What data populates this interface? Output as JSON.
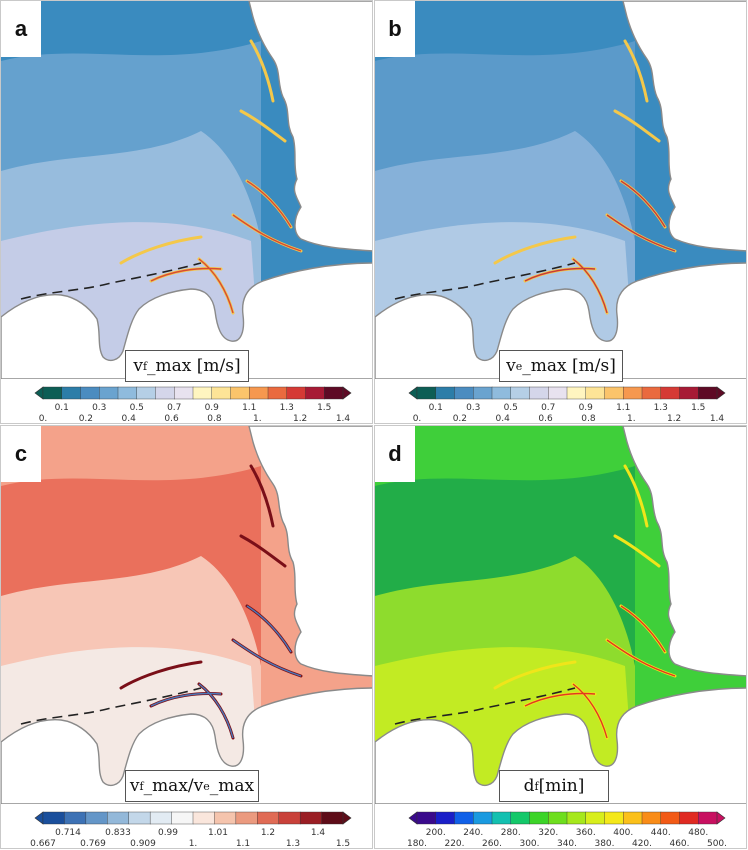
{
  "panels": [
    {
      "label": "a",
      "variable": {
        "main": "v",
        "sub": "f",
        "rest": "_max [m/s]"
      },
      "colorbar": {
        "colors": [
          "#0d5e55",
          "#2c7da8",
          "#4b8cc0",
          "#6aa3cf",
          "#8fbbdd",
          "#b5cfe6",
          "#d4d6ea",
          "#e8e2ef",
          "#fff5c0",
          "#fde497",
          "#fbc46b",
          "#f6984f",
          "#ea6a3e",
          "#d53a35",
          "#a71a35",
          "#5e0a25"
        ],
        "labels_top": [
          "0.1",
          "0.3",
          "0.5",
          "0.7",
          "0.9",
          "1.1",
          "1.3",
          "1.5"
        ],
        "labels_bottom": [
          "0.",
          "0.2",
          "0.4",
          "0.6",
          "0.8",
          "1.",
          "1.2",
          "1.4"
        ]
      },
      "palette": {
        "sea": "#3a8bbf",
        "mid": "#6aa3cf",
        "light": "#9cbfdf",
        "pale": "#c9cde8",
        "streak": "#f4c84a",
        "streak2": "#d74a35"
      }
    },
    {
      "label": "b",
      "variable": {
        "main": "v",
        "sub": "e",
        "rest": "_max [m/s]"
      },
      "colorbar": {
        "colors": [
          "#0d5e55",
          "#2c7da8",
          "#4b8cc0",
          "#6aa3cf",
          "#8fbbdd",
          "#b5cfe6",
          "#d4d6ea",
          "#e8e2ef",
          "#fff5c0",
          "#fde497",
          "#fbc46b",
          "#f6984f",
          "#ea6a3e",
          "#d53a35",
          "#a71a35",
          "#5e0a25"
        ],
        "labels_top": [
          "0.1",
          "0.3",
          "0.5",
          "0.7",
          "0.9",
          "1.1",
          "1.3",
          "1.5"
        ],
        "labels_bottom": [
          "0.",
          "0.2",
          "0.4",
          "0.6",
          "0.8",
          "1.",
          "1.2",
          "1.4"
        ]
      },
      "palette": {
        "sea": "#3a8bbf",
        "mid": "#5f9bcb",
        "light": "#8bb4da",
        "pale": "#b5cde6",
        "streak": "#f4c84a",
        "streak2": "#c73a3a"
      }
    },
    {
      "label": "c",
      "variable": {
        "main": "v",
        "sub": "f",
        "rest": "_max/v",
        "sub2": "e",
        "rest2": "_max"
      },
      "colorbar": {
        "colors": [
          "#1a4f9c",
          "#3d72b5",
          "#6496c8",
          "#93b8d9",
          "#c3d7e9",
          "#e2ebf3",
          "#f6f6f6",
          "#fae6dc",
          "#f5c4ad",
          "#eb9a7f",
          "#e06b55",
          "#c9413a",
          "#9a1e24",
          "#5e0c18"
        ],
        "labels_top": [
          "0.714",
          "0.833",
          "0.99",
          "1.01",
          "1.2",
          "1.4"
        ],
        "labels_bottom": [
          "0.667",
          "0.769",
          "0.909",
          "1.",
          "1.1",
          "1.3",
          "1.5"
        ]
      },
      "palette": {
        "sea": "#f4a28a",
        "mid": "#e96a56",
        "light": "#f8cfc0",
        "pale": "#f3ece9",
        "streak": "#7a0f18",
        "streak2": "#4b78b8"
      }
    },
    {
      "label": "d",
      "variable": {
        "main": "d",
        "sub": "f",
        "rest": " [min]"
      },
      "colorbar": {
        "colors": [
          "#3a0a8c",
          "#1a1fc8",
          "#1060e8",
          "#1a9ae0",
          "#13c0b0",
          "#14c86a",
          "#3cd428",
          "#6ede1e",
          "#a6e81c",
          "#d8ee1c",
          "#f4e81a",
          "#fbc01a",
          "#f98c18",
          "#f25a16",
          "#e02a22",
          "#c81060"
        ],
        "labels_top": [
          "200.",
          "240.",
          "280.",
          "320.",
          "360.",
          "400.",
          "440.",
          "480."
        ],
        "labels_bottom": [
          "180.",
          "220.",
          "260.",
          "300.",
          "340.",
          "380.",
          "420.",
          "460.",
          "500."
        ]
      },
      "palette": {
        "sea": "#3fcf3a",
        "mid": "#1fa84a",
        "light": "#9ae12a",
        "pale": "#c8ec22",
        "streak": "#f0e51a",
        "streak2": "#e03a22"
      }
    }
  ]
}
